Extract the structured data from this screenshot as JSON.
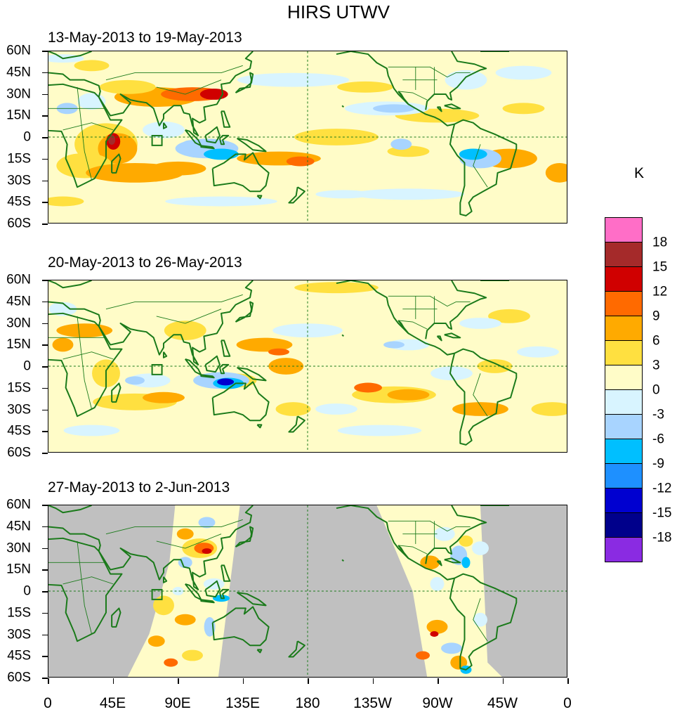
{
  "title": "HIRS UTWV",
  "panels": [
    {
      "period": "13-May-2013 to 19-May-2013"
    },
    {
      "period": "20-May-2013 to 26-May-2013"
    },
    {
      "period": "27-May-2013 to 2-Jun-2013"
    }
  ],
  "y_axis_labels": [
    "60N",
    "45N",
    "30N",
    "15N",
    "0",
    "15S",
    "30S",
    "45S",
    "60S"
  ],
  "x_axis_labels": [
    "0",
    "45E",
    "90E",
    "135E",
    "180",
    "135W",
    "90W",
    "45W",
    "0"
  ],
  "colorbar": {
    "units": "K",
    "labels": [
      "18",
      "15",
      "12",
      "9",
      "6",
      "3",
      "0",
      "-3",
      "-6",
      "-9",
      "-12",
      "-15",
      "-18"
    ],
    "colors": [
      "#ff6ec7",
      "#a52a2a",
      "#d00000",
      "#ff6a00",
      "#ffaa00",
      "#ffe040",
      "#fffcc8",
      "#d8f4ff",
      "#a8d4ff",
      "#00bfff",
      "#1e90ff",
      "#0000d0",
      "#00008b",
      "#8a2be2"
    ]
  },
  "colors": {
    "background_fill": "#ffffd8",
    "land_outline": "#1a7a1a",
    "missing_data": "#c0c0c0"
  }
}
